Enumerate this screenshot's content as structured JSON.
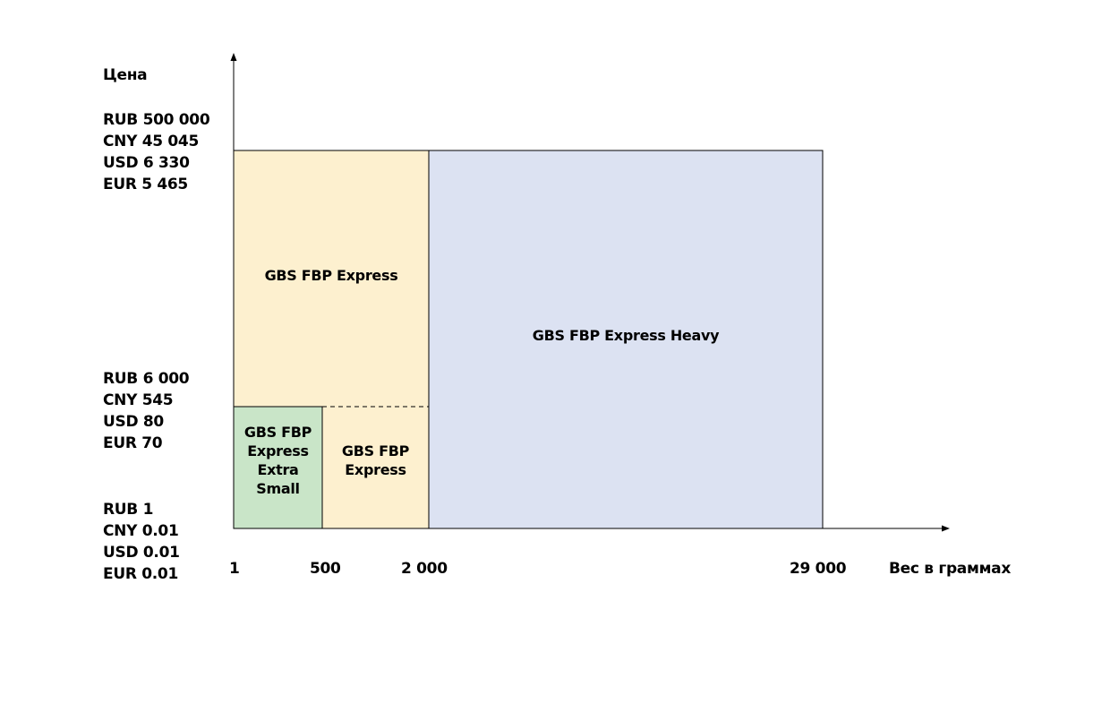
{
  "y_axis_title": "Цена",
  "x_axis_title": "Вес в граммах",
  "price_levels": [
    {
      "id": "max",
      "lines": [
        "RUB 500 000",
        "CNY 45 045",
        "USD 6 330",
        "EUR 5 465"
      ]
    },
    {
      "id": "mid",
      "lines": [
        "RUB 6 000",
        "CNY 545",
        "USD 80",
        "EUR 70"
      ]
    },
    {
      "id": "min",
      "lines": [
        "RUB 1",
        "CNY 0.01",
        "USD 0.01",
        "EUR 0.01"
      ]
    }
  ],
  "weight_ticks": [
    "1",
    "500",
    "2 000",
    "29 000"
  ],
  "zones": [
    {
      "id": "express-extra-small",
      "label": "GBS FBP Express Extra Small",
      "color": "#c9e5c8"
    },
    {
      "id": "express-small",
      "label": "GBS FBP Express",
      "color": "#fdf0cf"
    },
    {
      "id": "express",
      "label": "GBS FBP Express",
      "color": "#fdf0cf"
    },
    {
      "id": "express-heavy",
      "label": "GBS FBP Express Heavy",
      "color": "#dce2f2"
    }
  ]
}
